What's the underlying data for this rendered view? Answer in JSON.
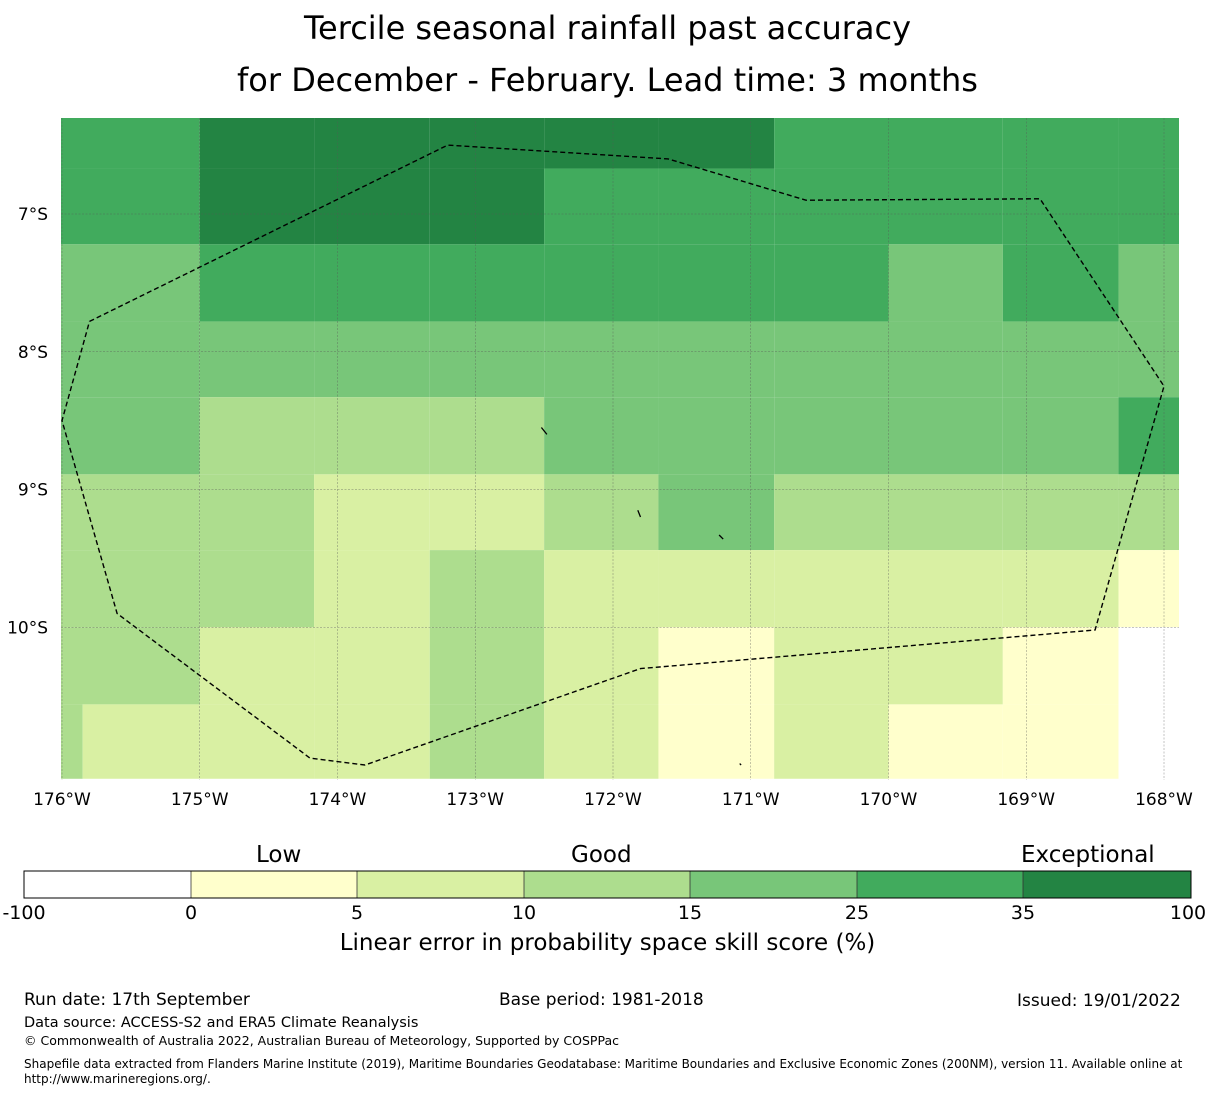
{
  "title": {
    "line1": "Tercile seasonal rainfall past accuracy",
    "line2": "for December - February. Lead time: 3 months"
  },
  "map": {
    "lon_range": [
      -176.1,
      -167.9
    ],
    "lat_range": [
      -11.1,
      -6.3
    ],
    "lon_tick_values": [
      -176,
      -175,
      -174,
      -173,
      -172,
      -171,
      -170,
      -169,
      -168
    ],
    "lon_tick_labels": [
      "176°W",
      "175°W",
      "174°W",
      "173°W",
      "172°W",
      "171°W",
      "170°W",
      "169°W",
      "168°W"
    ],
    "lat_tick_values": [
      -7,
      -8,
      -9,
      -10
    ],
    "lat_tick_labels": [
      "7°S",
      "8°S",
      "9°S",
      "10°S"
    ],
    "grid_lon_edges": [
      -176.1,
      -175.0,
      -174.17,
      -173.33,
      -172.5,
      -171.67,
      -170.83,
      -170.0,
      -169.17,
      -168.33,
      -167.9
    ],
    "grid_lat_edges": [
      -6.3,
      -6.67,
      -7.22,
      -7.78,
      -8.33,
      -8.89,
      -9.44,
      -10.0,
      -10.56,
      -11.1
    ],
    "skill_class_rows": [
      [
        5,
        6,
        6,
        6,
        6,
        6,
        5,
        5,
        5,
        5
      ],
      [
        5,
        6,
        6,
        6,
        5,
        5,
        5,
        5,
        5,
        5
      ],
      [
        4,
        5,
        5,
        5,
        5,
        5,
        5,
        4,
        5,
        4
      ],
      [
        4,
        4,
        4,
        4,
        4,
        4,
        4,
        4,
        4,
        4
      ],
      [
        4,
        3,
        3,
        3,
        4,
        4,
        4,
        4,
        4,
        5
      ],
      [
        3,
        3,
        2,
        2,
        3,
        4,
        3,
        3,
        3,
        3
      ],
      [
        3,
        3,
        2,
        3,
        2,
        2,
        2,
        2,
        2,
        1
      ],
      [
        3,
        2,
        2,
        3,
        2,
        1,
        2,
        2,
        1,
        0
      ],
      [
        2,
        2,
        2,
        3,
        2,
        1,
        2,
        1,
        1,
        0
      ]
    ],
    "first_col_split_lat": -10.56,
    "first_col_split_lon": -175.85,
    "eez_boundary": [
      [
        -175.8,
        -7.78
      ],
      [
        -173.2,
        -6.5
      ],
      [
        -171.6,
        -6.6
      ],
      [
        -170.6,
        -6.9
      ],
      [
        -168.9,
        -6.89
      ],
      [
        -168.0,
        -8.25
      ],
      [
        -168.5,
        -10.02
      ],
      [
        -171.8,
        -10.3
      ],
      [
        -173.8,
        -11.0
      ],
      [
        -174.2,
        -10.95
      ],
      [
        -175.6,
        -9.9
      ],
      [
        -176.0,
        -8.5
      ],
      [
        -175.8,
        -7.78
      ]
    ],
    "islands": [
      [
        [
          -172.52,
          -8.55
        ],
        [
          -172.48,
          -8.6
        ]
      ],
      [
        [
          -171.82,
          -9.15
        ],
        [
          -171.8,
          -9.2
        ]
      ],
      [
        [
          -171.23,
          -9.33
        ],
        [
          -171.2,
          -9.36
        ]
      ],
      [
        [
          -171.08,
          -10.99
        ],
        [
          -171.07,
          -11.0
        ]
      ]
    ]
  },
  "colorbar": {
    "category_labels": [
      "Low",
      "Good",
      "Exceptional"
    ],
    "tick_labels": [
      "-100",
      "0",
      "5",
      "10",
      "15",
      "25",
      "35",
      "100"
    ],
    "colors": [
      "#ffffff",
      "#ffffcc",
      "#d9f0a3",
      "#addd8e",
      "#78c679",
      "#41ab5d",
      "#238443"
    ],
    "xlabel": "Linear error in probability space skill score (%)"
  },
  "footer": {
    "run_date": "Run date: 17th September",
    "base_period": "Base period: 1981-2018",
    "issued": "Issued: 19/01/2022",
    "data_source": "Data source: ACCESS-S2 and ERA5 Climate Reanalysis",
    "copyright": "© Commonwealth of Australia 2022, Australian Bureau of Meteorology, Supported by COSPPac",
    "shapefile_line1": "Shapefile data extracted from Flanders Marine Institute (2019), Maritime Boundaries Geodatabase: Maritime Boundaries and Exclusive Economic Zones (200NM), version 11. Available online at",
    "shapefile_line2": "http://www.marineregions.org/."
  }
}
